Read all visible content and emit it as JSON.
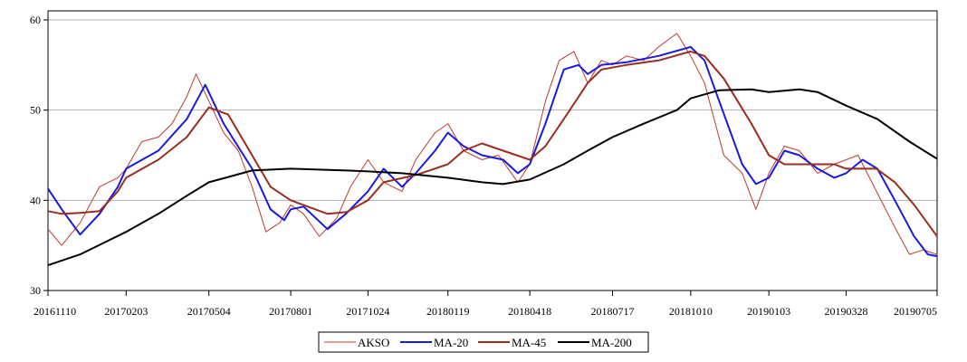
{
  "chart_data": {
    "type": "line",
    "title": "",
    "xlabel": "",
    "ylabel": "",
    "ylim": [
      30,
      61
    ],
    "y_ticks": [
      30,
      40,
      50,
      60
    ],
    "x_ticks": [
      "20161110",
      "20170203",
      "20170504",
      "20170801",
      "20171024",
      "20180119",
      "20180418",
      "20180717",
      "20181010",
      "20190103",
      "20190328",
      "20190705"
    ],
    "grid": "horizontal",
    "legend_position": "bottom",
    "colors": {
      "AKSO": "#c0392b",
      "MA-20": "#1a1adf",
      "MA-45": "#9b2d20",
      "MA-200": "#000000"
    },
    "series": [
      {
        "name": "AKSO",
        "points": [
          [
            "20161110",
            36.8
          ],
          [
            "20161125",
            35.0
          ],
          [
            "20161215",
            37.5
          ],
          [
            "20170105",
            41.5
          ],
          [
            "20170125",
            42.5
          ],
          [
            "20170203",
            43.5
          ],
          [
            "20170220",
            46.5
          ],
          [
            "20170310",
            47.0
          ],
          [
            "20170325",
            48.5
          ],
          [
            "20170410",
            51.5
          ],
          [
            "20170420",
            54.0
          ],
          [
            "20170504",
            51.0
          ],
          [
            "20170520",
            47.5
          ],
          [
            "20170605",
            45.5
          ],
          [
            "20170620",
            41.5
          ],
          [
            "20170705",
            36.5
          ],
          [
            "20170720",
            37.5
          ],
          [
            "20170801",
            39.5
          ],
          [
            "20170815",
            38.5
          ],
          [
            "20170901",
            36.0
          ],
          [
            "20170920",
            38.0
          ],
          [
            "20171005",
            41.5
          ],
          [
            "20171024",
            44.5
          ],
          [
            "20171110",
            42.0
          ],
          [
            "20171130",
            41.0
          ],
          [
            "20171215",
            44.5
          ],
          [
            "20180105",
            47.5
          ],
          [
            "20180119",
            48.5
          ],
          [
            "20180205",
            45.5
          ],
          [
            "20180225",
            44.5
          ],
          [
            "20180315",
            45.0
          ],
          [
            "20180405",
            42.0
          ],
          [
            "20180418",
            44.0
          ],
          [
            "20180505",
            51.0
          ],
          [
            "20180520",
            55.5
          ],
          [
            "20180605",
            56.5
          ],
          [
            "20180620",
            53.0
          ],
          [
            "20180705",
            55.5
          ],
          [
            "20180717",
            55.0
          ],
          [
            "20180801",
            56.0
          ],
          [
            "20180820",
            55.5
          ],
          [
            "20180905",
            57.0
          ],
          [
            "20180925",
            58.5
          ],
          [
            "20181010",
            56.0
          ],
          [
            "20181025",
            53.0
          ],
          [
            "20181115",
            45.0
          ],
          [
            "20181205",
            43.0
          ],
          [
            "20181220",
            39.0
          ],
          [
            "20190103",
            43.0
          ],
          [
            "20190120",
            46.0
          ],
          [
            "20190205",
            45.5
          ],
          [
            "20190225",
            43.0
          ],
          [
            "20190315",
            44.0
          ],
          [
            "20190328",
            44.5
          ],
          [
            "20190410",
            45.0
          ],
          [
            "20190430",
            41.0
          ],
          [
            "20190520",
            37.0
          ],
          [
            "20190605",
            34.0
          ],
          [
            "20190620",
            34.5
          ],
          [
            "20190705",
            34.0
          ]
        ]
      },
      {
        "name": "MA-20",
        "points": [
          [
            "20161110",
            41.3
          ],
          [
            "20161125",
            39.0
          ],
          [
            "20161215",
            36.2
          ],
          [
            "20170105",
            38.5
          ],
          [
            "20170125",
            41.5
          ],
          [
            "20170203",
            43.5
          ],
          [
            "20170310",
            45.5
          ],
          [
            "20170410",
            49.0
          ],
          [
            "20170430",
            52.8
          ],
          [
            "20170520",
            48.5
          ],
          [
            "20170620",
            43.5
          ],
          [
            "20170710",
            39.0
          ],
          [
            "20170725",
            37.8
          ],
          [
            "20170801",
            39.0
          ],
          [
            "20170815",
            39.3
          ],
          [
            "20170910",
            36.8
          ],
          [
            "20170930",
            38.5
          ],
          [
            "20171024",
            41.0
          ],
          [
            "20171110",
            43.5
          ],
          [
            "20171130",
            41.5
          ],
          [
            "20171215",
            43.0
          ],
          [
            "20180105",
            45.5
          ],
          [
            "20180119",
            47.5
          ],
          [
            "20180205",
            46.0
          ],
          [
            "20180225",
            45.0
          ],
          [
            "20180320",
            44.5
          ],
          [
            "20180405",
            43.0
          ],
          [
            "20180418",
            44.0
          ],
          [
            "20180505",
            48.5
          ],
          [
            "20180525",
            54.5
          ],
          [
            "20180610",
            55.0
          ],
          [
            "20180620",
            54.0
          ],
          [
            "20180705",
            55.0
          ],
          [
            "20180801",
            55.3
          ],
          [
            "20180905",
            56.0
          ],
          [
            "20181010",
            57.0
          ],
          [
            "20181025",
            55.5
          ],
          [
            "20181110",
            51.0
          ],
          [
            "20181205",
            44.0
          ],
          [
            "20181220",
            41.8
          ],
          [
            "20190103",
            42.5
          ],
          [
            "20190120",
            45.5
          ],
          [
            "20190205",
            45.0
          ],
          [
            "20190225",
            43.5
          ],
          [
            "20190315",
            42.5
          ],
          [
            "20190328",
            43.0
          ],
          [
            "20190415",
            44.5
          ],
          [
            "20190501",
            43.5
          ],
          [
            "20190520",
            40.0
          ],
          [
            "20190610",
            36.0
          ],
          [
            "20190625",
            34.0
          ],
          [
            "20190705",
            33.8
          ]
        ]
      },
      {
        "name": "MA-45",
        "points": [
          [
            "20161110",
            38.8
          ],
          [
            "20161125",
            38.5
          ],
          [
            "20161215",
            38.6
          ],
          [
            "20170105",
            38.8
          ],
          [
            "20170125",
            41.0
          ],
          [
            "20170203",
            42.5
          ],
          [
            "20170310",
            44.5
          ],
          [
            "20170410",
            47.0
          ],
          [
            "20170504",
            50.3
          ],
          [
            "20170525",
            49.5
          ],
          [
            "20170620",
            45.0
          ],
          [
            "20170710",
            41.5
          ],
          [
            "20170801",
            40.0
          ],
          [
            "20170910",
            38.5
          ],
          [
            "20171001",
            38.7
          ],
          [
            "20171024",
            40.0
          ],
          [
            "20171110",
            42.0
          ],
          [
            "20171215",
            42.8
          ],
          [
            "20180119",
            44.0
          ],
          [
            "20180205",
            45.5
          ],
          [
            "20180225",
            46.3
          ],
          [
            "20180320",
            45.5
          ],
          [
            "20180418",
            44.5
          ],
          [
            "20180505",
            46.0
          ],
          [
            "20180525",
            49.0
          ],
          [
            "20180620",
            53.0
          ],
          [
            "20180705",
            54.5
          ],
          [
            "20180801",
            55.0
          ],
          [
            "20180905",
            55.5
          ],
          [
            "20181010",
            56.5
          ],
          [
            "20181025",
            56.0
          ],
          [
            "20181115",
            53.5
          ],
          [
            "20181215",
            48.5
          ],
          [
            "20190103",
            45.0
          ],
          [
            "20190120",
            44.0
          ],
          [
            "20190225",
            44.0
          ],
          [
            "20190315",
            44.0
          ],
          [
            "20190328",
            43.5
          ],
          [
            "20190430",
            43.5
          ],
          [
            "20190520",
            42.0
          ],
          [
            "20190610",
            39.5
          ],
          [
            "20190705",
            36.0
          ]
        ]
      },
      {
        "name": "MA-200",
        "points": [
          [
            "20161110",
            32.8
          ],
          [
            "20161215",
            34.0
          ],
          [
            "20170203",
            36.5
          ],
          [
            "20170310",
            38.5
          ],
          [
            "20170410",
            40.5
          ],
          [
            "20170504",
            42.0
          ],
          [
            "20170620",
            43.3
          ],
          [
            "20170801",
            43.5
          ],
          [
            "20171001",
            43.3
          ],
          [
            "20171024",
            43.2
          ],
          [
            "20171130",
            43.0
          ],
          [
            "20180119",
            42.5
          ],
          [
            "20180225",
            42.0
          ],
          [
            "20180320",
            41.8
          ],
          [
            "20180418",
            42.3
          ],
          [
            "20180525",
            44.0
          ],
          [
            "20180620",
            45.5
          ],
          [
            "20180717",
            47.0
          ],
          [
            "20180820",
            48.5
          ],
          [
            "20180925",
            50.0
          ],
          [
            "20181010",
            51.3
          ],
          [
            "20181110",
            52.2
          ],
          [
            "20181215",
            52.3
          ],
          [
            "20190103",
            52.0
          ],
          [
            "20190205",
            52.3
          ],
          [
            "20190225",
            52.0
          ],
          [
            "20190328",
            50.5
          ],
          [
            "20190501",
            49.0
          ],
          [
            "20190605",
            46.5
          ],
          [
            "20190705",
            44.6
          ]
        ]
      }
    ]
  }
}
